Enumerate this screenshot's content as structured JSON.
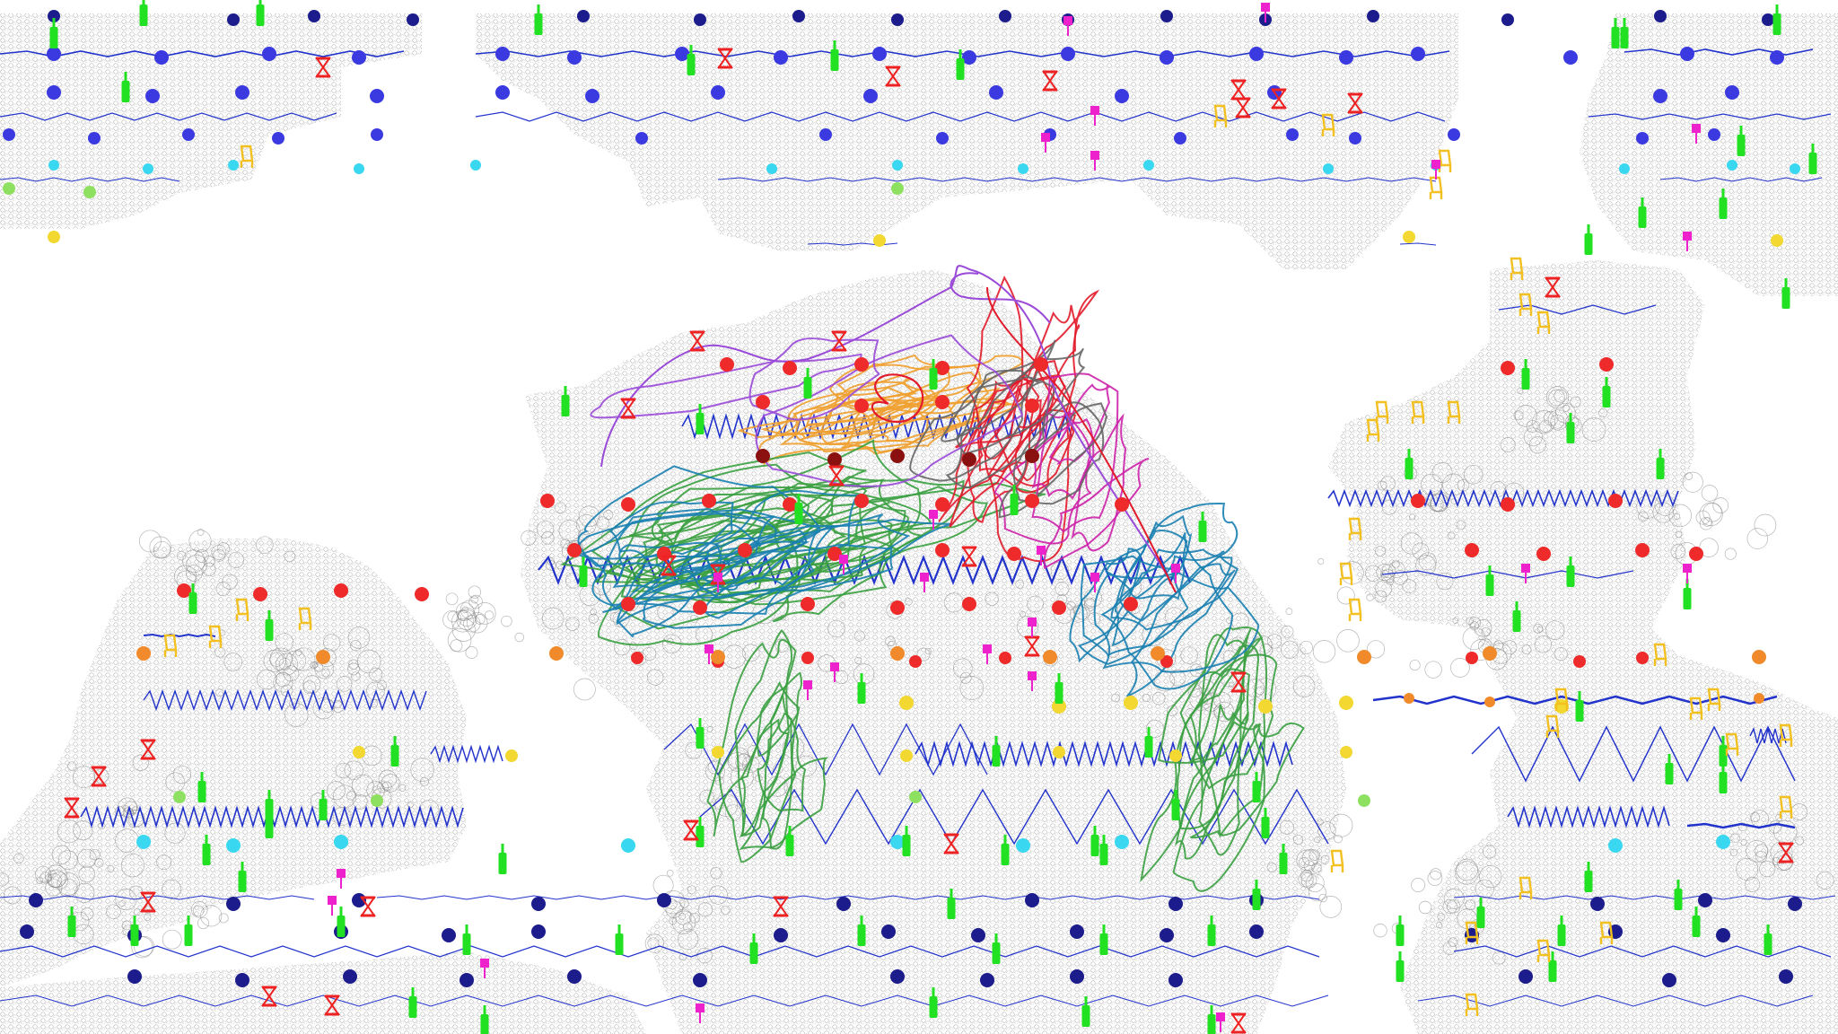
{
  "map": {
    "style": "abstract world map with symbol overlays",
    "visible_text": "",
    "colors": {
      "background": "#ffffff",
      "land_texture": "#b8b8b8",
      "wave_line": "#2233cc",
      "dot_navy": "#1c1c8c",
      "dot_blue": "#3a3ae0",
      "dot_red": "#ee2a2a",
      "dot_darkred": "#8b1010",
      "dot_orange": "#f08a2a",
      "dot_yellow": "#f2d830",
      "dot_cyan": "#3ad8f0",
      "dot_lightgreen": "#8ee060",
      "marker_green": "#22e022",
      "marker_red": "#ee2222",
      "marker_yellow": "#f2c020",
      "marker_magenta": "#ee22cc",
      "track_purple": "#9a4ad8",
      "track_red": "#e21a2a",
      "track_orange": "#f0a030",
      "track_green": "#3aa040",
      "track_teal": "#1a80b0",
      "track_gray": "#666666",
      "track_magenta": "#cc22aa"
    },
    "icons": [
      "bottle-marker-icon",
      "hourglass-marker-icon",
      "chair-marker-icon",
      "pushpin-marker-icon",
      "dot-marker-icon"
    ],
    "legend": "none shown",
    "title": ""
  }
}
